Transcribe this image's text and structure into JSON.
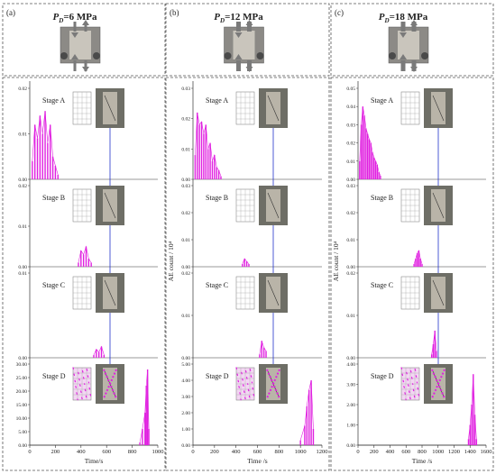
{
  "figure": {
    "panels": [
      {
        "tag": "(a)",
        "pressure_symbol": "P",
        "pressure_sub": "D",
        "pressure_value": "=6 MPa",
        "ylabel": "",
        "xlabel": "Time/s",
        "xticks": [
          "0",
          "200",
          "400",
          "600",
          "800",
          "1000"
        ],
        "stages": [
          {
            "label": "Stage A",
            "yticks": [
              "0.00",
              "0.01",
              "0.02"
            ]
          },
          {
            "label": "Stage B",
            "yticks": [
              "0.00",
              "0.01",
              "0.02"
            ]
          },
          {
            "label": "Stage C",
            "yticks": [
              "0.00",
              "0.01"
            ]
          },
          {
            "label": "Stage D",
            "yticks": [
              "0.00",
              "5.00",
              "10.00",
              "15.00",
              "20.00",
              "25.00",
              "30.00"
            ]
          }
        ]
      },
      {
        "tag": "(b)",
        "pressure_symbol": "P",
        "pressure_sub": "D",
        "pressure_value": "=12 MPa",
        "ylabel": "AE count / 10⁴",
        "xlabel": "Time /s",
        "xticks": [
          "0",
          "200",
          "400",
          "600",
          "800",
          "1000",
          "1200"
        ],
        "stages": [
          {
            "label": "Stage A",
            "yticks": [
              "0.00",
              "0.01",
              "0.02",
              "0.03"
            ]
          },
          {
            "label": "Stage B",
            "yticks": [
              "0.00",
              "0.01",
              "0.02",
              "0.03"
            ]
          },
          {
            "label": "Stage C",
            "yticks": [
              "0.00",
              "0.01",
              "0.02"
            ]
          },
          {
            "label": "Stage D",
            "yticks": [
              "0.00",
              "1.00",
              "2.00",
              "3.00",
              "4.00",
              "5.00"
            ]
          }
        ]
      },
      {
        "tag": "(c)",
        "pressure_symbol": "P",
        "pressure_sub": "D",
        "pressure_value": "=18 MPa",
        "ylabel": "AE count / 10⁴",
        "xlabel": "Time /s",
        "xticks": [
          "0",
          "200",
          "400",
          "600",
          "800",
          "1000",
          "1200",
          "1400",
          "1600"
        ],
        "stages": [
          {
            "label": "Stage A",
            "yticks": [
              "0.00",
              "0.01",
              "0.02",
              "0.03",
              "0.04",
              "0.05"
            ]
          },
          {
            "label": "Stage B",
            "yticks": [
              "0.00",
              "0.01",
              "0.02",
              "0.03"
            ]
          },
          {
            "label": "Stage C",
            "yticks": [
              "0.00",
              "0.01",
              "0.02"
            ]
          },
          {
            "label": "Stage D",
            "yticks": [
              "0.00",
              "1.00",
              "2.00",
              "3.00",
              "4.00"
            ]
          }
        ]
      }
    ],
    "colors": {
      "signal": "#e020e0",
      "arrow": "#2233cc",
      "dashed_border": "#555555",
      "photo_bg": "#6e6e66",
      "specimen": "#b9b4a8"
    }
  },
  "chart_data": [
    {
      "type": "line",
      "panel": "(a)",
      "xlim": [
        0,
        1000
      ],
      "series": [
        {
          "name": "Stage A",
          "ylim": [
            0,
            0.02
          ],
          "x": [
            20,
            40,
            60,
            80,
            100,
            120,
            140,
            160,
            180,
            200,
            220
          ],
          "y": [
            0.004,
            0.012,
            0.009,
            0.014,
            0.01,
            0.015,
            0.008,
            0.012,
            0.005,
            0.003,
            0.001
          ]
        },
        {
          "name": "Stage B",
          "ylim": [
            0,
            0.02
          ],
          "x": [
            380,
            400,
            420,
            440,
            460,
            480
          ],
          "y": [
            0.001,
            0.004,
            0.003,
            0.005,
            0.002,
            0.001
          ]
        },
        {
          "name": "Stage C",
          "ylim": [
            0,
            0.015
          ],
          "x": [
            500,
            520,
            540,
            560,
            580
          ],
          "y": [
            0.0005,
            0.0015,
            0.001,
            0.002,
            0.0005
          ]
        },
        {
          "name": "Stage D",
          "ylim": [
            0,
            30
          ],
          "x": [
            860,
            880,
            900,
            910,
            920,
            930
          ],
          "y": [
            1,
            6,
            12,
            22,
            28,
            6
          ]
        }
      ]
    },
    {
      "type": "line",
      "panel": "(b)",
      "xlim": [
        0,
        1200
      ],
      "series": [
        {
          "name": "Stage A",
          "ylim": [
            0,
            0.03
          ],
          "x": [
            20,
            40,
            60,
            80,
            100,
            120,
            140,
            160,
            180,
            200,
            220,
            240,
            260
          ],
          "y": [
            0.008,
            0.022,
            0.018,
            0.019,
            0.015,
            0.018,
            0.01,
            0.012,
            0.006,
            0.008,
            0.004,
            0.003,
            0.001
          ]
        },
        {
          "name": "Stage B",
          "ylim": [
            0,
            0.03
          ],
          "x": [
            460,
            480,
            500,
            520
          ],
          "y": [
            0.001,
            0.003,
            0.002,
            0.001
          ]
        },
        {
          "name": "Stage C",
          "ylim": [
            0,
            0.025
          ],
          "x": [
            620,
            640,
            660,
            680
          ],
          "y": [
            0.001,
            0.005,
            0.003,
            0.002
          ]
        },
        {
          "name": "Stage D",
          "ylim": [
            0,
            5
          ],
          "x": [
            1000,
            1040,
            1060,
            1080,
            1100,
            1120
          ],
          "y": [
            0.3,
            1.2,
            2.4,
            3.4,
            4.0,
            1.0
          ]
        }
      ]
    },
    {
      "type": "line",
      "panel": "(c)",
      "xlim": [
        0,
        1600
      ],
      "series": [
        {
          "name": "Stage A",
          "ylim": [
            0,
            0.05
          ],
          "x": [
            20,
            40,
            60,
            80,
            100,
            120,
            140,
            160,
            180,
            200,
            220,
            240,
            260,
            280
          ],
          "y": [
            0.01,
            0.03,
            0.04,
            0.035,
            0.028,
            0.025,
            0.022,
            0.02,
            0.015,
            0.012,
            0.01,
            0.008,
            0.004,
            0.002
          ]
        },
        {
          "name": "Stage B",
          "ylim": [
            0,
            0.03
          ],
          "x": [
            700,
            720,
            740,
            760,
            780,
            800
          ],
          "y": [
            0.001,
            0.003,
            0.005,
            0.006,
            0.003,
            0.001
          ]
        },
        {
          "name": "Stage C",
          "ylim": [
            0,
            0.025
          ],
          "x": [
            920,
            940,
            960,
            980
          ],
          "y": [
            0.001,
            0.004,
            0.008,
            0.002
          ]
        },
        {
          "name": "Stage D",
          "ylim": [
            0,
            4
          ],
          "x": [
            1380,
            1400,
            1420,
            1440,
            1460,
            1480
          ],
          "y": [
            0.3,
            1.0,
            2.0,
            3.5,
            1.5,
            0.3
          ]
        }
      ]
    }
  ]
}
